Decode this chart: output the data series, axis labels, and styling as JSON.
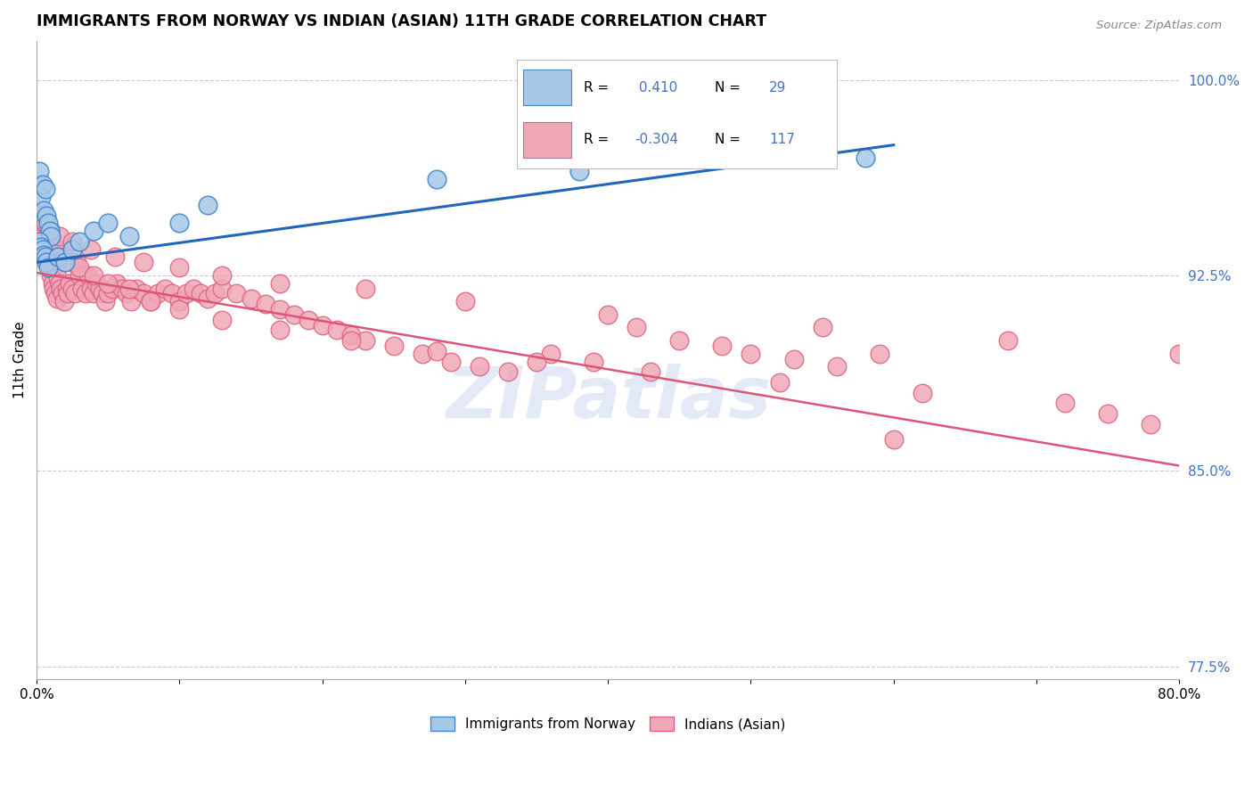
{
  "title": "IMMIGRANTS FROM NORWAY VS INDIAN (ASIAN) 11TH GRADE CORRELATION CHART",
  "source_text": "Source: ZipAtlas.com",
  "ylabel": "11th Grade",
  "xlim": [
    0.0,
    0.8
  ],
  "ylim": [
    0.77,
    1.015
  ],
  "xticks": [
    0.0,
    0.1,
    0.2,
    0.3,
    0.4,
    0.5,
    0.6,
    0.7,
    0.8
  ],
  "xticklabels": [
    "0.0%",
    "",
    "",
    "",
    "",
    "",
    "",
    "",
    "80.0%"
  ],
  "ytick_positions": [
    1.0,
    0.925,
    0.85,
    0.775
  ],
  "ytick_labels": [
    "100.0%",
    "92.5%",
    "85.0%",
    "77.5%"
  ],
  "norway_R": 0.41,
  "norway_N": 29,
  "indian_R": -0.304,
  "indian_N": 117,
  "norway_color": "#a8c8e8",
  "indian_color": "#f0a8b8",
  "norway_edge_color": "#4488cc",
  "indian_edge_color": "#e06080",
  "norway_line_color": "#2266bb",
  "indian_line_color": "#dd5577",
  "legend_label_norway": "Immigrants from Norway",
  "legend_label_indian": "Indians (Asian)",
  "norway_line_x0": 0.0,
  "norway_line_y0": 0.93,
  "norway_line_x1": 0.6,
  "norway_line_y1": 0.975,
  "indian_line_x0": 0.0,
  "indian_line_y0": 0.926,
  "indian_line_x1": 0.8,
  "indian_line_y1": 0.852,
  "norway_pts_x": [
    0.001,
    0.002,
    0.003,
    0.004,
    0.005,
    0.006,
    0.007,
    0.008,
    0.009,
    0.01,
    0.002,
    0.003,
    0.004,
    0.005,
    0.006,
    0.007,
    0.008,
    0.015,
    0.02,
    0.025,
    0.03,
    0.04,
    0.05,
    0.065,
    0.1,
    0.12,
    0.28,
    0.38,
    0.58
  ],
  "norway_pts_y": [
    0.96,
    0.965,
    0.955,
    0.96,
    0.95,
    0.958,
    0.948,
    0.945,
    0.942,
    0.94,
    0.938,
    0.936,
    0.935,
    0.933,
    0.932,
    0.93,
    0.928,
    0.932,
    0.93,
    0.935,
    0.938,
    0.942,
    0.945,
    0.94,
    0.945,
    0.952,
    0.962,
    0.965,
    0.97
  ],
  "indian_pts_x": [
    0.004,
    0.005,
    0.006,
    0.007,
    0.008,
    0.009,
    0.01,
    0.011,
    0.012,
    0.013,
    0.014,
    0.015,
    0.016,
    0.017,
    0.018,
    0.019,
    0.02,
    0.021,
    0.022,
    0.023,
    0.025,
    0.027,
    0.028,
    0.03,
    0.032,
    0.034,
    0.036,
    0.038,
    0.04,
    0.042,
    0.044,
    0.046,
    0.048,
    0.05,
    0.053,
    0.056,
    0.06,
    0.063,
    0.066,
    0.07,
    0.075,
    0.08,
    0.085,
    0.09,
    0.095,
    0.1,
    0.105,
    0.11,
    0.115,
    0.12,
    0.125,
    0.13,
    0.14,
    0.15,
    0.16,
    0.17,
    0.18,
    0.19,
    0.2,
    0.21,
    0.22,
    0.23,
    0.25,
    0.27,
    0.29,
    0.31,
    0.33,
    0.36,
    0.39,
    0.42,
    0.45,
    0.48,
    0.5,
    0.53,
    0.56,
    0.59,
    0.005,
    0.008,
    0.01,
    0.015,
    0.02,
    0.025,
    0.03,
    0.04,
    0.05,
    0.065,
    0.08,
    0.1,
    0.13,
    0.17,
    0.22,
    0.28,
    0.35,
    0.43,
    0.52,
    0.62,
    0.72,
    0.75,
    0.78,
    0.003,
    0.006,
    0.01,
    0.016,
    0.025,
    0.038,
    0.055,
    0.075,
    0.1,
    0.13,
    0.17,
    0.23,
    0.3,
    0.4,
    0.55,
    0.68,
    0.8,
    0.6
  ],
  "indian_pts_y": [
    0.94,
    0.938,
    0.935,
    0.932,
    0.93,
    0.928,
    0.925,
    0.922,
    0.92,
    0.918,
    0.916,
    0.924,
    0.922,
    0.92,
    0.918,
    0.915,
    0.93,
    0.92,
    0.918,
    0.922,
    0.92,
    0.918,
    0.93,
    0.925,
    0.92,
    0.918,
    0.925,
    0.92,
    0.918,
    0.922,
    0.92,
    0.918,
    0.915,
    0.918,
    0.92,
    0.922,
    0.92,
    0.918,
    0.915,
    0.92,
    0.918,
    0.915,
    0.918,
    0.92,
    0.918,
    0.915,
    0.918,
    0.92,
    0.918,
    0.916,
    0.918,
    0.92,
    0.918,
    0.916,
    0.914,
    0.912,
    0.91,
    0.908,
    0.906,
    0.904,
    0.902,
    0.9,
    0.898,
    0.895,
    0.892,
    0.89,
    0.888,
    0.895,
    0.892,
    0.905,
    0.9,
    0.898,
    0.895,
    0.893,
    0.89,
    0.895,
    0.945,
    0.942,
    0.938,
    0.935,
    0.932,
    0.93,
    0.928,
    0.925,
    0.922,
    0.92,
    0.915,
    0.912,
    0.908,
    0.904,
    0.9,
    0.896,
    0.892,
    0.888,
    0.884,
    0.88,
    0.876,
    0.872,
    0.868,
    0.948,
    0.945,
    0.942,
    0.94,
    0.938,
    0.935,
    0.932,
    0.93,
    0.928,
    0.925,
    0.922,
    0.92,
    0.915,
    0.91,
    0.905,
    0.9,
    0.895,
    0.862
  ]
}
